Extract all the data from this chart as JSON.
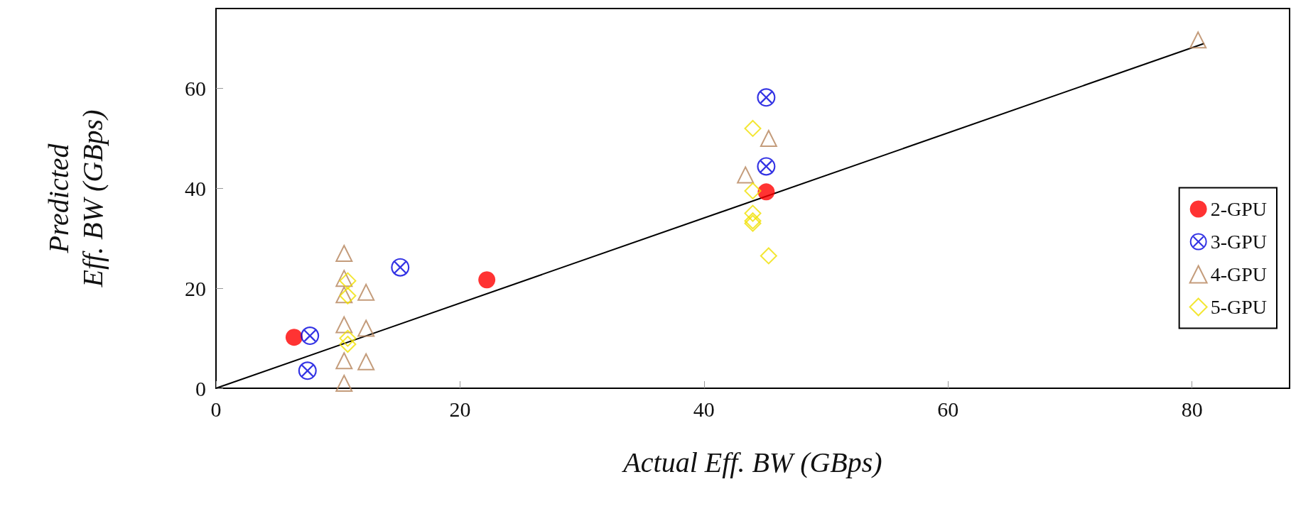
{
  "chart_data": {
    "type": "scatter",
    "xlabel": "Actual Eff. BW (GBps)",
    "ylabel": "Predicted\nEff. BW (GBps)",
    "xlim": [
      0,
      88
    ],
    "xticks": [
      0,
      20,
      40,
      60,
      80
    ],
    "ylim": [
      0,
      76
    ],
    "yticks": [
      0,
      20,
      40,
      60
    ],
    "grid": false,
    "legend": "right",
    "series": [
      {
        "name": "2-GPU",
        "color": "#ff0000",
        "marker": "circle",
        "x": [
          6.4,
          22.2,
          45.1
        ],
        "values": [
          10.2,
          21.7,
          39.3
        ]
      },
      {
        "name": "3-GPU",
        "color": "#0000dd",
        "marker": "cross",
        "x": [
          7.7,
          7.5,
          15.1,
          45.1,
          45.1
        ],
        "values": [
          10.5,
          3.5,
          24.2,
          58.2,
          44.4
        ]
      },
      {
        "name": "4-GPU",
        "color": "#b5835a",
        "marker": "triangle",
        "x": [
          10.5,
          10.5,
          10.5,
          10.5,
          10.5,
          10.5,
          12.3,
          12.3,
          12.3,
          43.4,
          45.3,
          80.5
        ],
        "values": [
          27,
          22,
          18.7,
          12.7,
          5.5,
          1,
          19.2,
          12,
          5.3,
          42.7,
          50,
          69.7
        ]
      },
      {
        "name": "5-GPU",
        "color": "#f0e000",
        "marker": "diamond",
        "x": [
          10.8,
          10.8,
          10.8,
          10.8,
          44,
          44,
          44,
          44,
          44,
          45.3
        ],
        "values": [
          21.5,
          18.5,
          10,
          8.8,
          52,
          39.5,
          35,
          33.5,
          33,
          26.5
        ]
      },
      {
        "type": "line",
        "color": "#000000",
        "marker": "none",
        "x": [
          0,
          81
        ],
        "values": [
          0,
          69
        ]
      }
    ]
  }
}
